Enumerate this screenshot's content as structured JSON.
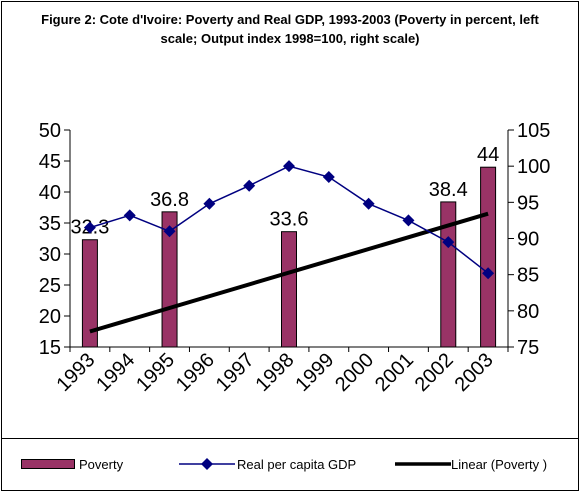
{
  "chart_data": {
    "type": "bar",
    "title": "Figure 2: Cote d'Ivoire: Poverty and Real GDP, 1993-2003 (Poverty in percent, left scale; Output index 1998=100, right scale)",
    "categories": [
      "1993",
      "1994",
      "1995",
      "1996",
      "1997",
      "1998",
      "1999",
      "2000",
      "2001",
      "2002",
      "2003"
    ],
    "y_left": {
      "min": 15,
      "max": 50,
      "ticks": [
        15,
        20,
        25,
        30,
        35,
        40,
        45,
        50
      ]
    },
    "y_right": {
      "min": 75,
      "max": 105,
      "ticks": [
        75,
        80,
        85,
        90,
        95,
        100,
        105
      ]
    },
    "series": [
      {
        "name": "Poverty",
        "type": "bar",
        "axis": "left",
        "color": "#993366",
        "data": [
          {
            "x": "1993",
            "y": 32.3,
            "label": "32.3"
          },
          {
            "x": "1995",
            "y": 36.8,
            "label": "36.8"
          },
          {
            "x": "1998",
            "y": 33.6,
            "label": "33.6"
          },
          {
            "x": "2002",
            "y": 38.4,
            "label": "38.4"
          },
          {
            "x": "2003",
            "y": 44,
            "label": "44"
          }
        ]
      },
      {
        "name": "Real per capita GDP",
        "type": "line",
        "axis": "right",
        "color": "#000080",
        "marker": "diamond",
        "values": [
          91.5,
          93.2,
          91.0,
          94.8,
          97.3,
          100.0,
          98.5,
          94.8,
          92.5,
          89.5,
          85.2
        ]
      },
      {
        "name": "Linear (Poverty )",
        "type": "trendline",
        "axis": "left",
        "color": "#000000",
        "start": {
          "x": "1993",
          "y": 17.5
        },
        "end": {
          "x": "2003",
          "y": 36.5
        }
      }
    ],
    "legend": {
      "position": "bottom"
    },
    "grid": false
  }
}
